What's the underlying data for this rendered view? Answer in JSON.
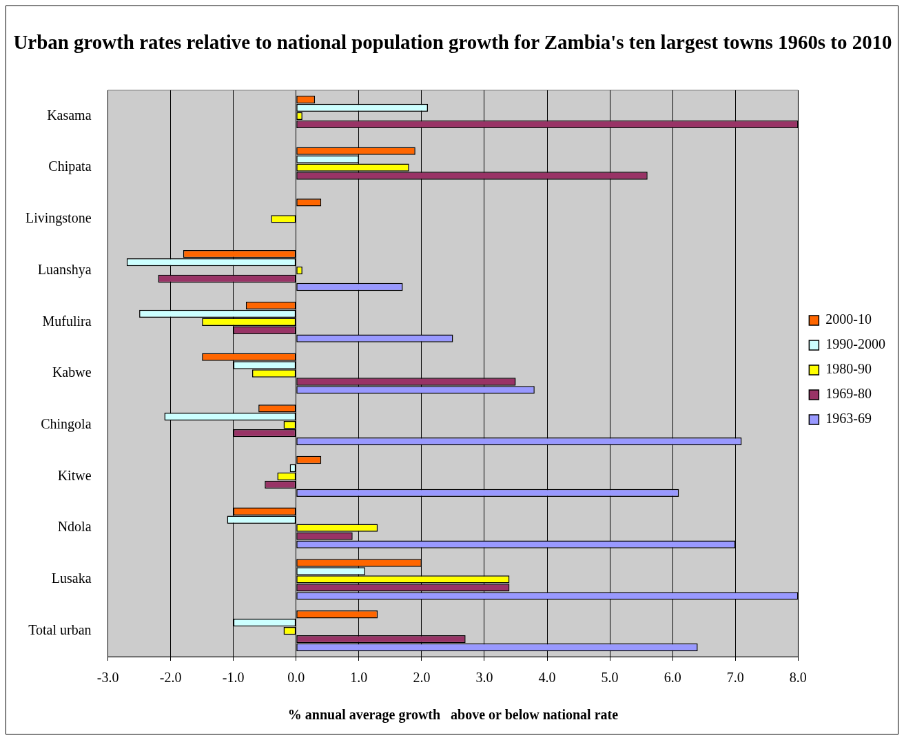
{
  "chart_data": {
    "type": "bar",
    "orientation": "horizontal",
    "title": "Urban growth rates relative to national population growth for Zambia's ten largest towns 1960s to 2010",
    "xlabel": "% annual average growth   above or below national rate",
    "categories": [
      "Kasama",
      "Chipata",
      "Livingstone",
      "Luanshya",
      "Mufulira",
      "Kabwe",
      "Chingola",
      "Kitwe",
      "Ndola",
      "Lusaka",
      "Total urban"
    ],
    "series": [
      {
        "name": "2000-10",
        "color": "#ff6600",
        "values": [
          0.3,
          1.9,
          0.4,
          -1.8,
          -0.8,
          -1.5,
          -0.6,
          0.4,
          -1.0,
          2.0,
          1.3
        ]
      },
      {
        "name": "1990-2000",
        "color": "#ccffff",
        "values": [
          2.1,
          1.0,
          null,
          -2.7,
          -2.5,
          -1.0,
          -2.1,
          -0.1,
          -1.1,
          1.1,
          -1.0
        ]
      },
      {
        "name": "1980-90",
        "color": "#ffff00",
        "values": [
          0.1,
          1.8,
          -0.4,
          0.1,
          -1.5,
          -0.7,
          -0.2,
          -0.3,
          1.3,
          3.4,
          -0.2
        ]
      },
      {
        "name": "1969-80",
        "color": "#993366",
        "values": [
          8.0,
          5.6,
          null,
          -2.2,
          -1.0,
          3.5,
          -1.0,
          -0.5,
          0.9,
          3.4,
          2.7
        ]
      },
      {
        "name": "1963-69",
        "color": "#9999ff",
        "values": [
          null,
          null,
          null,
          1.7,
          2.5,
          3.8,
          7.1,
          6.1,
          7.0,
          8.0,
          6.4
        ]
      }
    ],
    "xlim": [
      -3,
      8
    ],
    "xticks": [
      {
        "value": -3,
        "label": "-3.0"
      },
      {
        "value": -2,
        "label": "-2.0"
      },
      {
        "value": -1,
        "label": "-1.0"
      },
      {
        "value": 0,
        "label": "0.0"
      },
      {
        "value": 1,
        "label": "1.0"
      },
      {
        "value": 2,
        "label": "2.0"
      },
      {
        "value": 3,
        "label": "3.0"
      },
      {
        "value": 4,
        "label": "4.0"
      },
      {
        "value": 5,
        "label": "5.0"
      },
      {
        "value": 6,
        "label": "6.0"
      },
      {
        "value": 7,
        "label": "7.0"
      },
      {
        "value": 8,
        "label": "8.0"
      }
    ],
    "grid": "x",
    "legend": "right"
  }
}
